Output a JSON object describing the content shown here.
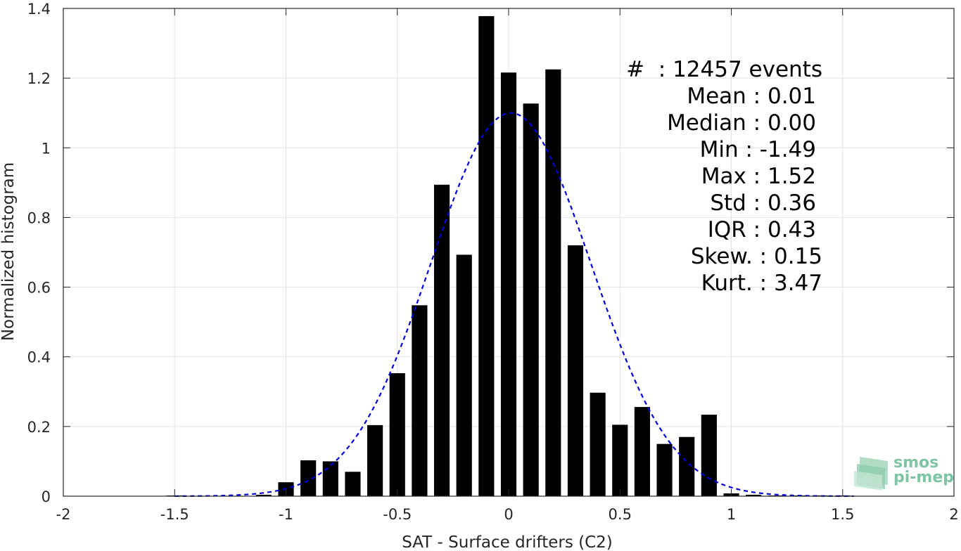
{
  "chart_data": {
    "type": "bar",
    "xlabel": "SAT - Surface drifters (C2)",
    "ylabel": "Normalized histogram",
    "xlim": [
      -2,
      2
    ],
    "ylim": [
      0,
      1.4
    ],
    "grid": true,
    "x_ticks": [
      "-2",
      "-1.5",
      "-1",
      "-0.5",
      "0",
      "0.5",
      "1",
      "1.5",
      "2"
    ],
    "y_ticks": [
      "0",
      "0.2",
      "0.4",
      "0.6",
      "0.8",
      "1",
      "1.2",
      "1.4"
    ],
    "bar_width": 0.07,
    "bars": {
      "x": [
        -1.5,
        -1.1,
        -1.0,
        -0.9,
        -0.8,
        -0.7,
        -0.6,
        -0.5,
        -0.4,
        -0.3,
        -0.2,
        -0.1,
        0.0,
        0.1,
        0.2,
        0.3,
        0.4,
        0.5,
        0.6,
        0.7,
        0.8,
        0.9,
        1.0,
        1.1,
        1.2,
        1.3,
        1.4,
        1.5
      ],
      "values": [
        0.002,
        0.004,
        0.04,
        0.103,
        0.1,
        0.07,
        0.204,
        0.353,
        0.548,
        0.894,
        0.693,
        1.378,
        1.216,
        1.127,
        1.225,
        0.72,
        0.297,
        0.205,
        0.256,
        0.15,
        0.17,
        0.234,
        0.008,
        0.004,
        0.002,
        0.002,
        0.002,
        0.002
      ],
      "color": "#000000"
    },
    "fit_curve": {
      "kind": "gaussian",
      "style": "dashed",
      "color": "#0000dd",
      "mean": 0.01,
      "std": 0.36,
      "peak": 1.1,
      "x_range": [
        -1.5,
        1.55
      ]
    },
    "stats_box": {
      "lines": [
        "#  : 12457 events",
        "Mean : 0.01",
        "Median : 0.00",
        "Min : -1.49",
        "Max : 1.52",
        "Std : 0.36",
        "IQR : 0.43",
        "Skew. : 0.15",
        "Kurt. : 3.47"
      ]
    }
  },
  "logo": {
    "line1": "smos",
    "line2": "pi-mep",
    "color": "#7fc4a4"
  }
}
